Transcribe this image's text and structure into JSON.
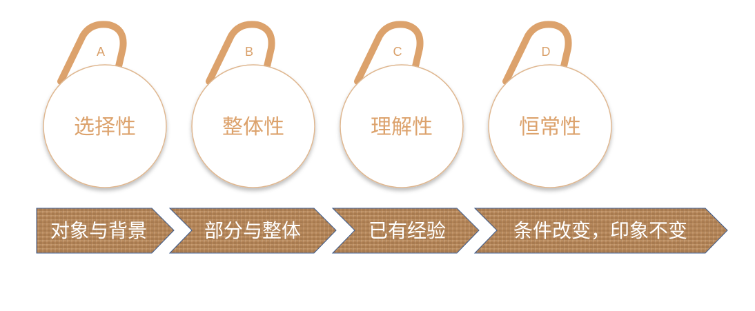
{
  "items": [
    {
      "letter": "A",
      "label": "选择性"
    },
    {
      "letter": "B",
      "label": "整体性"
    },
    {
      "letter": "C",
      "label": "理解性"
    },
    {
      "letter": "D",
      "label": "恒常性"
    }
  ],
  "arrows": [
    {
      "label": "对象与背景"
    },
    {
      "label": "部分与整体"
    },
    {
      "label": "已有经验"
    },
    {
      "label": "条件改变，印象不变"
    }
  ],
  "colors": {
    "hook": "#dca26c",
    "circle_stroke": "#dfb790",
    "circle_text": "#dca26c",
    "arrow_fill": "#b5875a",
    "arrow_stroke": "#3b5a8c",
    "arrow_text": "#ffffff"
  }
}
